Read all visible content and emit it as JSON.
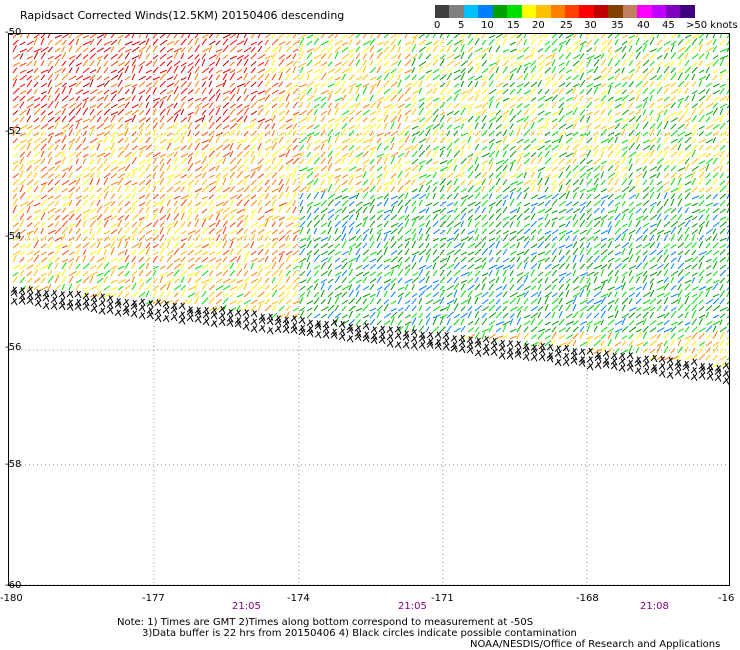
{
  "title": "Rapidsact Corrected Winds(12.5KM) 20150406 descending",
  "colorbar": {
    "colors": [
      "#404040",
      "#808080",
      "#00c0ff",
      "#0080ff",
      "#00a000",
      "#00e000",
      "#ffff00",
      "#ffc000",
      "#ff8000",
      "#ff4000",
      "#ff0000",
      "#c00000",
      "#804000",
      "#c08060",
      "#ff00ff",
      "#c000ff",
      "#8000c0",
      "#400080"
    ],
    "labels": [
      "0",
      "5",
      "10",
      "15",
      "20",
      "25",
      "30",
      "35",
      "40",
      "45",
      ">50 knots"
    ]
  },
  "lat_labels": [
    "-50",
    "-52",
    "-54",
    "-56",
    "-58",
    "-60"
  ],
  "lon_labels": [
    "-180",
    "-177",
    "-174",
    "-171",
    "-168",
    "-16"
  ],
  "time_labels": [
    "21:05",
    "21:05",
    "21:08"
  ],
  "notes": [
    "Note: 1) Times are GMT 2)Times along bottom correspond to measurement at -50S",
    "3)Data buffer is 22 hrs from 20150406 4) Black circles indicate possible contamination",
    "NOAA/NESDIS/Office of Research and Applications"
  ]
}
